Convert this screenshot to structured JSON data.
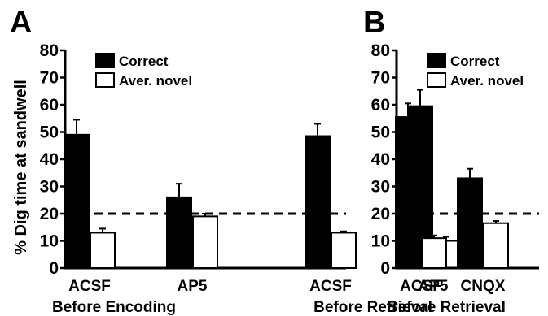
{
  "chart_data": [
    {
      "panel": "A",
      "type": "bar",
      "title": "",
      "ylabel": "% Dig time at sandwell",
      "xlabel": "",
      "ylim": [
        0,
        80
      ],
      "yticks": [
        0,
        10,
        20,
        30,
        40,
        50,
        60,
        70,
        80
      ],
      "grid": false,
      "legend_position": "top-left",
      "categories": [
        "ACSF",
        "AP5",
        "ACSF",
        "AP5"
      ],
      "groups": [
        {
          "label": "Before Encoding",
          "categories": [
            0,
            1
          ]
        },
        {
          "label": "Before Retrieval",
          "categories": [
            2,
            3
          ]
        }
      ],
      "series": [
        {
          "name": "Correct",
          "color": "#000000",
          "values": [
            49,
            26,
            48.5,
            59.5
          ],
          "errors": [
            5.5,
            5,
            4.5,
            6
          ]
        },
        {
          "name": "Aver. novel",
          "color": "#ffffff",
          "values": [
            13,
            19,
            13,
            10
          ],
          "errors": [
            1.5,
            1,
            0.5,
            1.5
          ]
        }
      ],
      "reference_line": {
        "y": 20,
        "style": "dashed"
      }
    },
    {
      "panel": "B",
      "type": "bar",
      "title": "",
      "ylabel": "",
      "xlabel": "",
      "ylim": [
        0,
        80
      ],
      "yticks": [
        0,
        10,
        20,
        30,
        40,
        50,
        60,
        70,
        80
      ],
      "grid": false,
      "legend_position": "top-left",
      "categories": [
        "ACSF",
        "CNQX"
      ],
      "groups": [
        {
          "label": "Before Retrieval",
          "categories": [
            0,
            1
          ]
        }
      ],
      "series": [
        {
          "name": "Correct",
          "color": "#000000",
          "values": [
            55.5,
            33
          ],
          "errors": [
            5,
            3.5
          ]
        },
        {
          "name": "Aver. novel",
          "color": "#ffffff",
          "values": [
            11,
            16.5
          ],
          "errors": [
            1,
            0.8
          ]
        }
      ],
      "reference_line": {
        "y": 20,
        "style": "dashed"
      }
    }
  ]
}
